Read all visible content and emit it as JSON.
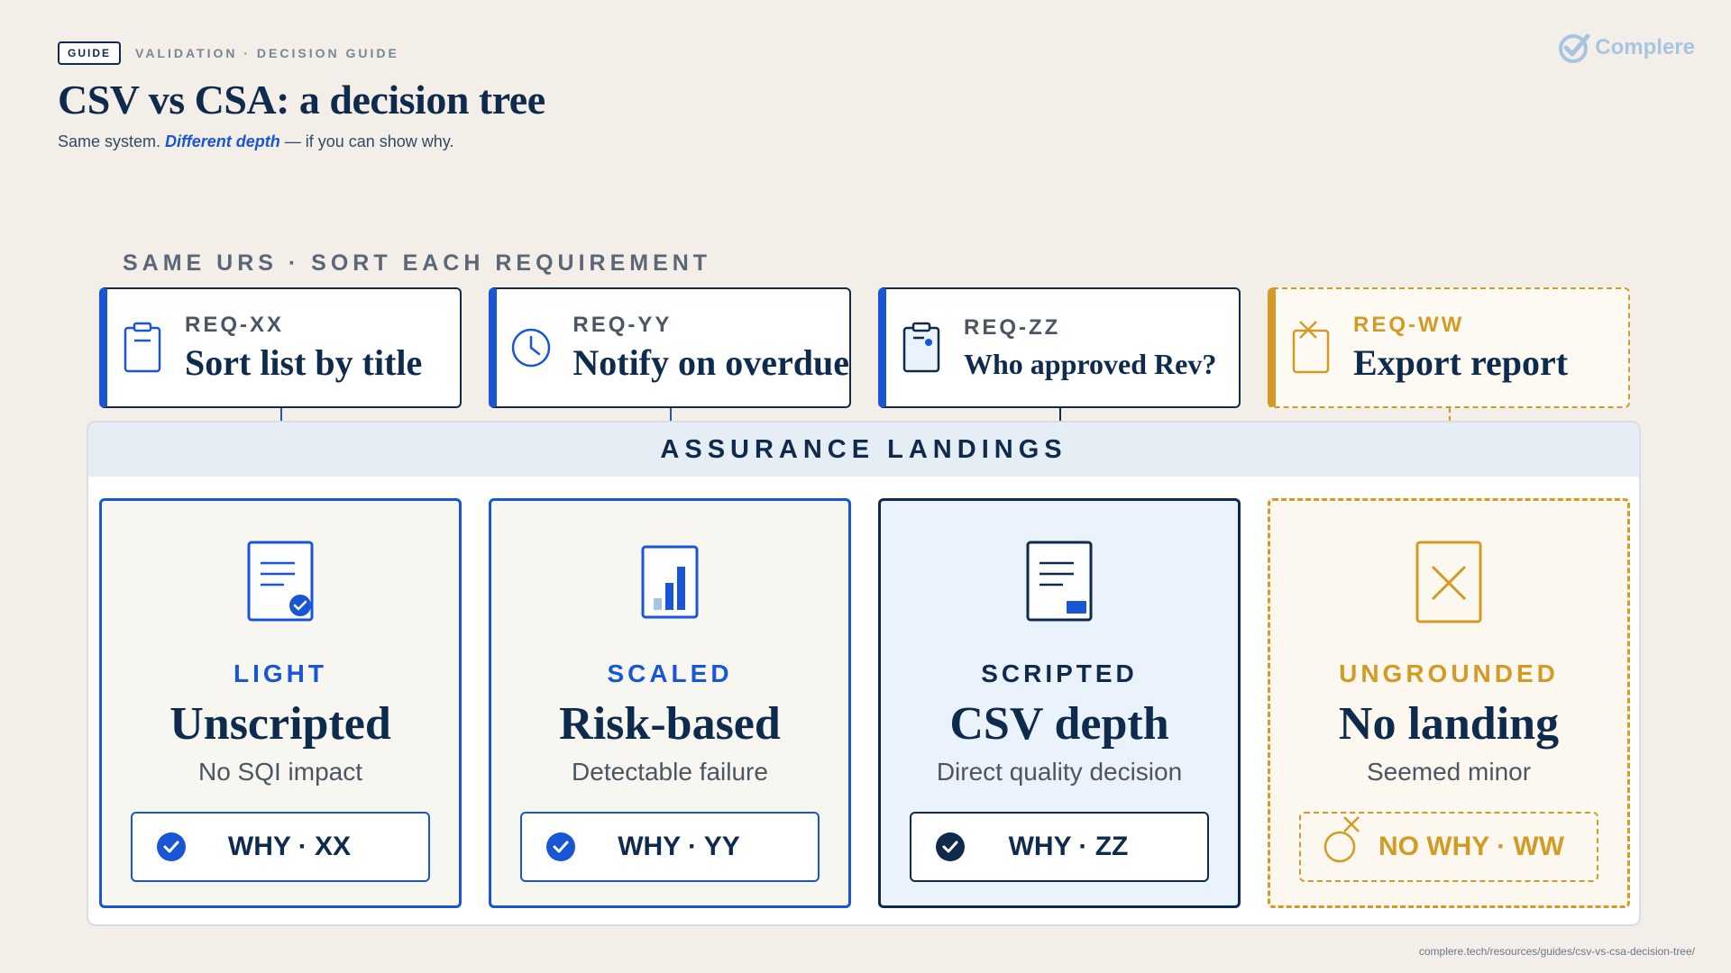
{
  "header": {
    "badge": "GUIDE",
    "crumb": "VALIDATION · DECISION GUIDE",
    "title": "CSV vs CSA: a decision tree",
    "subtitle_pre": "Same system.",
    "subtitle_em": "Different depth",
    "subtitle_post": "— if you can show why."
  },
  "brand": {
    "name": "Complere",
    "icon": "check-circle-logo-icon"
  },
  "section_label": "SAME URS · SORT EACH REQUIREMENT",
  "requirements": [
    {
      "code": "REQ-XX",
      "name": "Sort list by title",
      "icon": "clipboard-icon"
    },
    {
      "code": "REQ-YY",
      "name": "Notify on overdue",
      "icon": "clock-icon"
    },
    {
      "code": "REQ-ZZ",
      "name": "Who approved Rev?",
      "icon": "clipboard-dot-icon"
    },
    {
      "code": "REQ-WW",
      "name": "Export report",
      "icon": "clipboard-x-icon"
    }
  ],
  "panel_title": "ASSURANCE LANDINGS",
  "landings": [
    {
      "tier": "LIGHT",
      "name": "Unscripted",
      "desc": "No SQI impact",
      "why": "WHY · XX",
      "icon": "document-check-icon"
    },
    {
      "tier": "SCALED",
      "name": "Risk-based",
      "desc": "Detectable failure",
      "why": "WHY · YY",
      "icon": "bar-chart-icon"
    },
    {
      "tier": "SCRIPTED",
      "name": "CSV depth",
      "desc": "Direct quality decision",
      "why": "WHY · ZZ",
      "icon": "document-stamp-icon"
    },
    {
      "tier": "UNGROUNDED",
      "name": "No landing",
      "desc": "Seemed minor",
      "why": "NO WHY · WW",
      "icon": "box-x-icon"
    }
  ],
  "colors": {
    "blue": "#1856d6",
    "navy": "#0e2a4d",
    "gold": "#d39b26",
    "background": "#f3efe8"
  },
  "footer_url": "complere.tech/resources/guides/csv-vs-csa-decision-tree/"
}
